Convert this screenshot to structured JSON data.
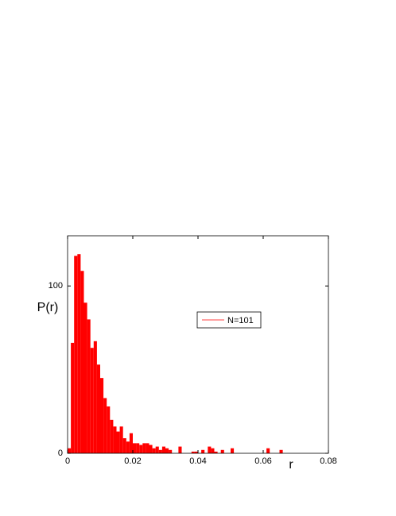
{
  "chart_data": {
    "type": "histogram",
    "xlabel": "r",
    "ylabel": "P(r)",
    "bins": [
      0,
      0.001,
      0.002,
      0.003,
      0.004,
      0.005,
      0.006,
      0.007,
      0.008,
      0.009,
      0.01,
      0.011,
      0.012,
      0.013,
      0.014,
      0.015,
      0.016,
      0.017,
      0.018,
      0.019,
      0.02,
      0.021,
      0.022,
      0.023,
      0.024,
      0.025,
      0.026,
      0.027,
      0.028,
      0.029,
      0.03,
      0.031,
      0.032,
      0.033,
      0.034,
      0.035,
      0.036,
      0.037,
      0.038,
      0.039,
      0.04,
      0.041,
      0.042,
      0.043,
      0.044,
      0.045,
      0.046,
      0.047,
      0.048,
      0.049,
      0.05,
      0.051,
      0.052,
      0.053,
      0.054,
      0.055,
      0.056,
      0.057,
      0.058,
      0.059,
      0.06,
      0.061,
      0.062,
      0.063,
      0.064,
      0.065,
      0.066
    ],
    "series": [
      {
        "name": "N=101",
        "color": "#ff0000",
        "values": [
          3,
          66,
          118,
          119,
          109,
          90,
          80,
          63,
          67,
          53,
          45,
          33,
          28,
          20,
          16,
          13,
          16,
          9,
          7,
          12,
          6,
          6,
          5,
          6,
          6,
          5,
          3,
          4,
          2,
          4,
          3,
          2,
          0,
          0,
          4,
          0,
          0,
          0,
          1,
          1,
          0,
          2,
          0,
          4,
          3,
          1,
          0,
          2,
          0,
          0,
          3,
          0,
          0,
          0,
          0,
          0,
          0,
          0,
          0,
          0,
          0,
          3,
          0,
          0,
          0,
          2
        ]
      }
    ],
    "xlim": [
      0,
      0.08
    ],
    "xticks": [
      0,
      0.02,
      0.04,
      0.06,
      0.08
    ],
    "ylim": [
      0,
      130
    ],
    "yticks": [
      0,
      100
    ],
    "legend": "upper-right",
    "grid": false
  }
}
